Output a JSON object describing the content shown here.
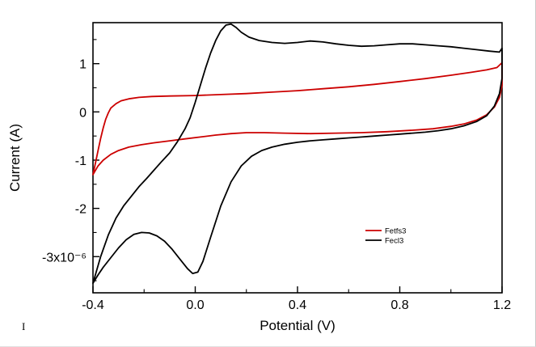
{
  "page": {
    "background": "#ffffff",
    "stray_mark": "I"
  },
  "chart_data": {
    "type": "line",
    "subtype": "cyclic-voltammogram",
    "title": "",
    "xlabel": "Potential (V)",
    "ylabel": "Current (A)",
    "xlim": [
      -0.4,
      1.2
    ],
    "ylim": [
      -3.75,
      1.85
    ],
    "y_unit_note": "x10⁻⁶",
    "grid": false,
    "x_major_ticks": [
      -0.4,
      0.0,
      0.4,
      0.8,
      1.2
    ],
    "x_tick_labels": [
      "-0.4",
      "0.0",
      "0.4",
      "0.8",
      "1.2"
    ],
    "x_minor_ticks": [
      -0.2,
      0.2,
      0.6,
      1.0
    ],
    "y_major_ticks": [
      1,
      0,
      -1,
      -2,
      -3
    ],
    "y_tick_labels": [
      "1",
      "0",
      "-1",
      "-2",
      "-3x10⁻⁶"
    ],
    "y_minor_ticks": [
      1.5,
      0.5,
      -0.5,
      -1.5,
      -2.5,
      -3.5
    ],
    "legend": {
      "position": "inside-right-lower",
      "entries": [
        {
          "label": "Fetfs3",
          "color": "#cc0000"
        },
        {
          "label": "Fecl3",
          "color": "#000000"
        }
      ]
    },
    "series": [
      {
        "name": "Fetfs3",
        "color": "#cc0000",
        "points": [
          [
            -0.4,
            -1.3
          ],
          [
            -0.39,
            -1.05
          ],
          [
            -0.38,
            -0.8
          ],
          [
            -0.37,
            -0.55
          ],
          [
            -0.36,
            -0.33
          ],
          [
            -0.35,
            -0.15
          ],
          [
            -0.34,
            -0.02
          ],
          [
            -0.33,
            0.08
          ],
          [
            -0.31,
            0.17
          ],
          [
            -0.29,
            0.23
          ],
          [
            -0.26,
            0.27
          ],
          [
            -0.22,
            0.3
          ],
          [
            -0.17,
            0.32
          ],
          [
            -0.1,
            0.33
          ],
          [
            0.0,
            0.34
          ],
          [
            0.1,
            0.36
          ],
          [
            0.2,
            0.38
          ],
          [
            0.3,
            0.41
          ],
          [
            0.4,
            0.44
          ],
          [
            0.5,
            0.48
          ],
          [
            0.6,
            0.52
          ],
          [
            0.7,
            0.57
          ],
          [
            0.8,
            0.63
          ],
          [
            0.9,
            0.69
          ],
          [
            1.0,
            0.76
          ],
          [
            1.08,
            0.82
          ],
          [
            1.14,
            0.87
          ],
          [
            1.18,
            0.92
          ],
          [
            1.2,
            1.02
          ],
          [
            1.2,
            0.55
          ],
          [
            1.19,
            0.3
          ],
          [
            1.17,
            0.1
          ],
          [
            1.14,
            -0.06
          ],
          [
            1.1,
            -0.17
          ],
          [
            1.05,
            -0.25
          ],
          [
            1.0,
            -0.3
          ],
          [
            0.93,
            -0.35
          ],
          [
            0.85,
            -0.38
          ],
          [
            0.75,
            -0.41
          ],
          [
            0.65,
            -0.43
          ],
          [
            0.55,
            -0.44
          ],
          [
            0.45,
            -0.45
          ],
          [
            0.35,
            -0.44
          ],
          [
            0.27,
            -0.43
          ],
          [
            0.2,
            -0.43
          ],
          [
            0.14,
            -0.45
          ],
          [
            0.08,
            -0.48
          ],
          [
            0.02,
            -0.52
          ],
          [
            -0.04,
            -0.56
          ],
          [
            -0.1,
            -0.6
          ],
          [
            -0.16,
            -0.64
          ],
          [
            -0.21,
            -0.68
          ],
          [
            -0.26,
            -0.73
          ],
          [
            -0.3,
            -0.8
          ],
          [
            -0.33,
            -0.88
          ],
          [
            -0.36,
            -1.0
          ],
          [
            -0.38,
            -1.12
          ],
          [
            -0.4,
            -1.3
          ]
        ]
      },
      {
        "name": "Fecl3",
        "color": "#000000",
        "points": [
          [
            -0.4,
            -3.55
          ],
          [
            -0.37,
            -3.0
          ],
          [
            -0.34,
            -2.55
          ],
          [
            -0.31,
            -2.2
          ],
          [
            -0.28,
            -1.95
          ],
          [
            -0.25,
            -1.75
          ],
          [
            -0.22,
            -1.55
          ],
          [
            -0.19,
            -1.38
          ],
          [
            -0.16,
            -1.2
          ],
          [
            -0.13,
            -1.02
          ],
          [
            -0.1,
            -0.85
          ],
          [
            -0.07,
            -0.62
          ],
          [
            -0.04,
            -0.35
          ],
          [
            -0.02,
            -0.12
          ],
          [
            0.0,
            0.2
          ],
          [
            0.02,
            0.55
          ],
          [
            0.04,
            0.9
          ],
          [
            0.06,
            1.22
          ],
          [
            0.08,
            1.48
          ],
          [
            0.1,
            1.68
          ],
          [
            0.12,
            1.8
          ],
          [
            0.14,
            1.82
          ],
          [
            0.16,
            1.75
          ],
          [
            0.18,
            1.65
          ],
          [
            0.21,
            1.55
          ],
          [
            0.25,
            1.48
          ],
          [
            0.3,
            1.44
          ],
          [
            0.35,
            1.42
          ],
          [
            0.4,
            1.44
          ],
          [
            0.45,
            1.47
          ],
          [
            0.5,
            1.45
          ],
          [
            0.55,
            1.41
          ],
          [
            0.6,
            1.38
          ],
          [
            0.65,
            1.36
          ],
          [
            0.7,
            1.37
          ],
          [
            0.75,
            1.39
          ],
          [
            0.8,
            1.41
          ],
          [
            0.85,
            1.41
          ],
          [
            0.9,
            1.39
          ],
          [
            0.95,
            1.37
          ],
          [
            1.0,
            1.35
          ],
          [
            1.05,
            1.32
          ],
          [
            1.1,
            1.29
          ],
          [
            1.15,
            1.26
          ],
          [
            1.19,
            1.24
          ],
          [
            1.2,
            1.32
          ],
          [
            1.2,
            0.7
          ],
          [
            1.19,
            0.38
          ],
          [
            1.17,
            0.12
          ],
          [
            1.14,
            -0.08
          ],
          [
            1.1,
            -0.2
          ],
          [
            1.05,
            -0.29
          ],
          [
            1.0,
            -0.35
          ],
          [
            0.95,
            -0.39
          ],
          [
            0.9,
            -0.42
          ],
          [
            0.85,
            -0.44
          ],
          [
            0.8,
            -0.46
          ],
          [
            0.75,
            -0.48
          ],
          [
            0.7,
            -0.5
          ],
          [
            0.65,
            -0.52
          ],
          [
            0.6,
            -0.54
          ],
          [
            0.55,
            -0.56
          ],
          [
            0.5,
            -0.58
          ],
          [
            0.45,
            -0.6
          ],
          [
            0.4,
            -0.63
          ],
          [
            0.35,
            -0.67
          ],
          [
            0.3,
            -0.73
          ],
          [
            0.26,
            -0.8
          ],
          [
            0.22,
            -0.92
          ],
          [
            0.18,
            -1.12
          ],
          [
            0.14,
            -1.45
          ],
          [
            0.1,
            -1.95
          ],
          [
            0.06,
            -2.6
          ],
          [
            0.03,
            -3.1
          ],
          [
            0.01,
            -3.32
          ],
          [
            -0.01,
            -3.35
          ],
          [
            -0.03,
            -3.25
          ],
          [
            -0.06,
            -3.05
          ],
          [
            -0.09,
            -2.85
          ],
          [
            -0.12,
            -2.68
          ],
          [
            -0.15,
            -2.57
          ],
          [
            -0.18,
            -2.51
          ],
          [
            -0.21,
            -2.5
          ],
          [
            -0.24,
            -2.54
          ],
          [
            -0.27,
            -2.65
          ],
          [
            -0.3,
            -2.82
          ],
          [
            -0.33,
            -3.02
          ],
          [
            -0.36,
            -3.22
          ],
          [
            -0.38,
            -3.38
          ],
          [
            -0.4,
            -3.55
          ]
        ]
      }
    ]
  }
}
